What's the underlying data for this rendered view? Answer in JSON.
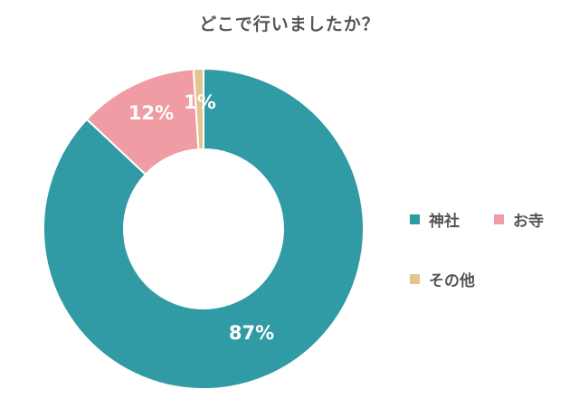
{
  "title": "どこで行いましたか？",
  "chart_data": {
    "type": "pie",
    "subtype": "donut",
    "title": "どこで行いましたか？",
    "categories": [
      "神社",
      "お寺",
      "その他"
    ],
    "values": [
      87,
      12,
      1
    ],
    "labels": [
      "87%",
      "12%",
      "1%"
    ],
    "colors": [
      "#309aa5",
      "#ef9ca4",
      "#e2c48e"
    ],
    "start_angle": "12 o'clock, clockwise",
    "legend_position": "right"
  },
  "legend": [
    {
      "label": "神社",
      "color": "#309aa5"
    },
    {
      "label": "お寺",
      "color": "#ef9ca4"
    },
    {
      "label": "その他",
      "color": "#e2c48e"
    }
  ]
}
